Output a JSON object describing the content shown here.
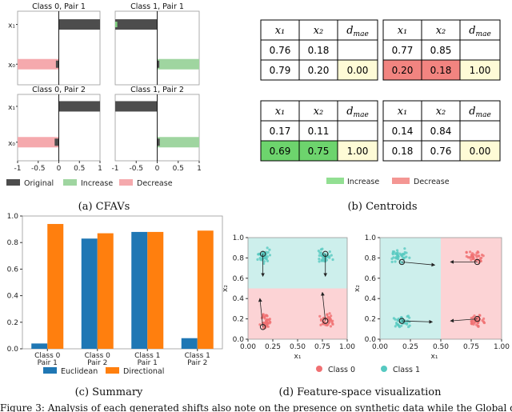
{
  "colors": {
    "original": "#4d4d4d",
    "increase": "#9fd5a0",
    "decrease": "#f5a9ad",
    "cell_increase": "#6dd46d",
    "cell_decrease": "#f28480",
    "cell_yellow": "#fefbd6",
    "euclidean": "#1f77b4",
    "directional": "#ff7f0e",
    "class0": "#f07072",
    "class1": "#56c9c1",
    "region0": "#fcd3d5",
    "region1": "#cdefec"
  },
  "captions": {
    "a": "(a) CFAVs",
    "b": "(b) Centroids",
    "c": "(c) Summary",
    "d": "(d) Feature-space visualization"
  },
  "body_text": "Figure 3: Analysis of each generated shifts also note on the presence on synthetic data while the Global d",
  "cfav": {
    "y_labels": [
      "x₁",
      "x₀"
    ],
    "x_ticks": [
      "-1",
      "-0.5",
      "0",
      "0.5",
      "1"
    ],
    "legend": [
      "Original",
      "Increase",
      "Decrease"
    ],
    "panels": [
      {
        "title": "Class 0, Pair 1",
        "x1": {
          "original": 1.0,
          "delta": 0.0
        },
        "x0": {
          "original": -0.07,
          "delta": -1.0
        }
      },
      {
        "title": "Class 1, Pair 1",
        "x1": {
          "original": -1.0,
          "delta": 0.05
        },
        "x0": {
          "original": 0.05,
          "delta": 1.0
        }
      },
      {
        "title": "Class 0, Pair 2",
        "x1": {
          "original": 1.0,
          "delta": 0.0
        },
        "x0": {
          "original": -0.1,
          "delta": -1.0
        }
      },
      {
        "title": "Class 1, Pair 2",
        "x1": {
          "original": -1.0,
          "delta": 0.0
        },
        "x0": {
          "original": 0.06,
          "delta": 1.0
        }
      }
    ]
  },
  "centroids": {
    "headers": [
      "x₁",
      "x₂",
      "d"
    ],
    "header_sub": "mae",
    "legend": [
      "Increase",
      "Decrease"
    ],
    "tables": [
      {
        "rows": [
          [
            "0.76",
            "0.18",
            ""
          ],
          [
            "0.79",
            "0.20",
            "0.00"
          ]
        ],
        "fills": [
          [
            "",
            "",
            ""
          ],
          [
            "",
            "",
            "yellow"
          ]
        ]
      },
      {
        "rows": [
          [
            "0.77",
            "0.85",
            ""
          ],
          [
            "0.20",
            "0.18",
            "1.00"
          ]
        ],
        "fills": [
          [
            "",
            "",
            ""
          ],
          [
            "decrease",
            "decrease",
            "yellow"
          ]
        ]
      },
      {
        "rows": [
          [
            "0.17",
            "0.11",
            ""
          ],
          [
            "0.69",
            "0.75",
            "1.00"
          ]
        ],
        "fills": [
          [
            "",
            "",
            ""
          ],
          [
            "increase",
            "increase",
            "yellow"
          ]
        ]
      },
      {
        "rows": [
          [
            "0.14",
            "0.84",
            ""
          ],
          [
            "0.18",
            "0.76",
            "0.00"
          ]
        ],
        "fills": [
          [
            "",
            "",
            ""
          ],
          [
            "",
            "",
            "yellow"
          ]
        ]
      }
    ]
  },
  "chart_data": [
    {
      "type": "bar",
      "title": "",
      "categories": [
        "Class 0\nPair 1",
        "Class 0\nPair 2",
        "Class 1\nPair 1",
        "Class 1\nPair 2"
      ],
      "series": [
        {
          "name": "Euclidean",
          "values": [
            0.04,
            0.83,
            0.88,
            0.08
          ]
        },
        {
          "name": "Directional",
          "values": [
            0.94,
            0.87,
            0.88,
            0.89
          ]
        }
      ],
      "ylim": [
        0,
        1.0
      ],
      "yticks": [
        "0.0",
        "0.2",
        "0.4",
        "0.6",
        "0.8",
        "1.0"
      ],
      "xlabel": "",
      "ylabel": ""
    },
    {
      "type": "scatter",
      "panels": [
        {
          "boundary": "horizontal at x2=0.5",
          "region_top": "class1",
          "region_bottom": "class0",
          "arrows": [
            [
              0.15,
              0.84,
              0.15,
              0.62
            ],
            [
              0.78,
              0.84,
              0.78,
              0.62
            ],
            [
              0.15,
              0.12,
              0.12,
              0.4
            ],
            [
              0.78,
              0.18,
              0.75,
              0.46
            ]
          ]
        },
        {
          "boundary": "vertical at x1=0.5",
          "region_left": "class1",
          "region_right": "class0",
          "arrows": [
            [
              0.18,
              0.76,
              0.45,
              0.73
            ],
            [
              0.8,
              0.76,
              0.58,
              0.76
            ],
            [
              0.18,
              0.18,
              0.43,
              0.17
            ],
            [
              0.8,
              0.2,
              0.58,
              0.18
            ]
          ]
        }
      ],
      "xticks": [
        "0.00",
        "0.25",
        "0.50",
        "0.75",
        "1.00"
      ],
      "yticks": [
        "0.0",
        "0.2",
        "0.4",
        "0.6",
        "0.8",
        "1.0"
      ],
      "xlabel": "x₁",
      "ylabel": "x₂",
      "legend": [
        "Class 0",
        "Class 1"
      ]
    }
  ]
}
